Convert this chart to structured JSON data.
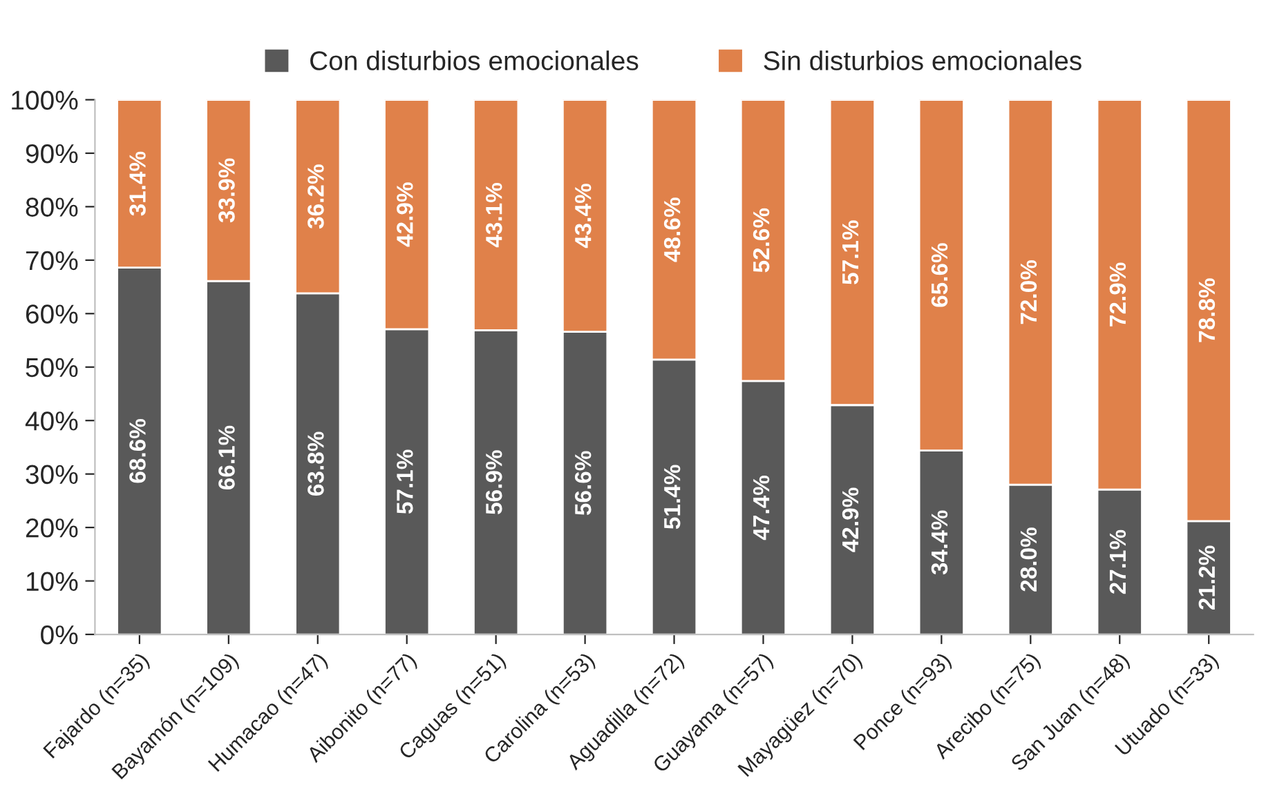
{
  "chart_data": {
    "type": "bar",
    "stacked": true,
    "categories": [
      "Fajardo (n=35)",
      "Bayamón (n=109)",
      "Humacao (n=47)",
      "Aibonito (n=77)",
      "Caguas (n=51)",
      "Carolina (n=53)",
      "Aguadilla (n=72)",
      "Guayama (n=57)",
      "Mayagüez (n=70)",
      "Ponce (n=93)",
      "Arecibo (n=75)",
      "San Juan (n=48)",
      "Utuado (n=33)"
    ],
    "series": [
      {
        "name": "Con disturbios emocionales",
        "color": "#595959",
        "values": [
          68.6,
          66.1,
          63.8,
          57.1,
          56.9,
          56.6,
          51.4,
          47.4,
          42.9,
          34.4,
          28.0,
          27.1,
          21.2
        ],
        "value_labels": [
          "68.6%",
          "66.1%",
          "63.8%",
          "57.1%",
          "56.9%",
          "56.6%",
          "51.4%",
          "47.4%",
          "42.9%",
          "34.4%",
          "28.0%",
          "27.1%",
          "21.2%"
        ]
      },
      {
        "name": "Sin disturbios emocionales",
        "color": "#e0814a",
        "values": [
          31.4,
          33.9,
          36.2,
          42.9,
          43.1,
          43.4,
          48.6,
          52.6,
          57.1,
          65.6,
          72.0,
          72.9,
          78.8
        ],
        "value_labels": [
          "31.4%",
          "33.9%",
          "36.2%",
          "42.9%",
          "43.1%",
          "43.4%",
          "48.6%",
          "52.6%",
          "57.1%",
          "65.6%",
          "72.0%",
          "72.9%",
          "78.8%"
        ]
      }
    ],
    "ylim": [
      0,
      100
    ],
    "yticks": [
      {
        "value": 0,
        "label": "0%"
      },
      {
        "value": 10,
        "label": "10%"
      },
      {
        "value": 20,
        "label": "20%"
      },
      {
        "value": 30,
        "label": "30%"
      },
      {
        "value": 40,
        "label": "40%"
      },
      {
        "value": 50,
        "label": "50%"
      },
      {
        "value": 60,
        "label": "60%"
      },
      {
        "value": 70,
        "label": "70%"
      },
      {
        "value": 80,
        "label": "80%"
      },
      {
        "value": 90,
        "label": "90%"
      },
      {
        "value": 100,
        "label": "100%"
      }
    ],
    "grid": false,
    "legend": "top"
  }
}
